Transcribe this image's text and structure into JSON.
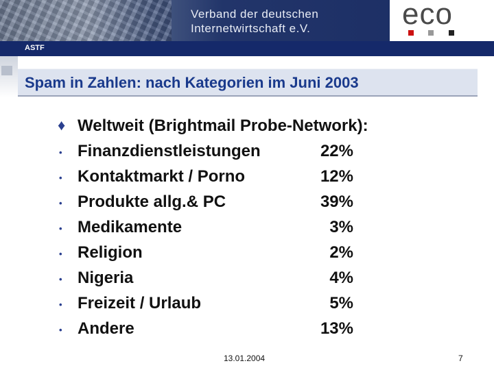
{
  "header": {
    "association_line1": "Verband der deutschen",
    "association_line2": "Internetwirtschaft e.V.",
    "logo": "eco",
    "section": "ASTF"
  },
  "slide": {
    "title": "Spam in Zahlen: nach Kategorien im Juni 2003",
    "heading_bullet": "♦",
    "heading": "Weltweit (Brightmail Probe-Network):",
    "item_bullet": "•",
    "items": [
      {
        "label": "Finanzdienstleistungen",
        "value": "22%"
      },
      {
        "label": "Kontaktmarkt / Porno",
        "value": "12%"
      },
      {
        "label": "Produkte allg.& PC",
        "value": "39%"
      },
      {
        "label": "Medikamente",
        "value": "3%"
      },
      {
        "label": "Religion",
        "value": "2%"
      },
      {
        "label": "Nigeria",
        "value": "4%"
      },
      {
        "label": "Freizeit / Urlaub",
        "value": "5%"
      },
      {
        "label": "Andere",
        "value": "13%"
      }
    ]
  },
  "footer": {
    "date": "13.01.2004",
    "page_number": "7"
  },
  "colors": {
    "title_text": "#1a3a8c",
    "title_bg": "#dde3ef",
    "strip": "#15296a",
    "logo_dots": [
      "#cc1111",
      "#999999",
      "#222222"
    ]
  }
}
